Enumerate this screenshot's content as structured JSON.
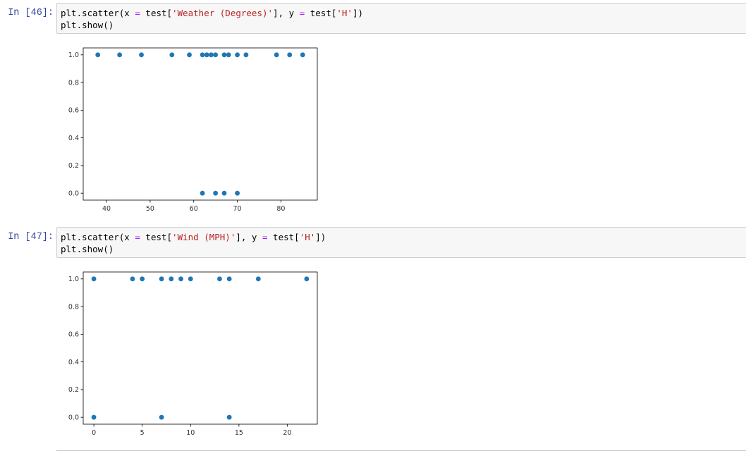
{
  "cells": [
    {
      "prompt": "In [46]:",
      "code": {
        "line1": [
          "plt.scatter(x ",
          "=",
          " test[",
          "'Weather (Degrees)'",
          "], y ",
          "=",
          " test[",
          "'H'",
          "])"
        ],
        "line2": "plt.show()"
      }
    },
    {
      "prompt": "In [47]:",
      "code": {
        "line1": [
          "plt.scatter(x ",
          "=",
          " test[",
          "'Wind (MPH)'",
          "], y ",
          "=",
          " test[",
          "'H'",
          "])"
        ],
        "line2": "plt.show()"
      }
    }
  ],
  "colors": {
    "marker": "#1f77b4",
    "prompt": "#303f9f",
    "string": "#ba2121",
    "operator": "#aa22ff"
  },
  "chart_data": [
    {
      "type": "scatter",
      "xlim": [
        34.65,
        88.35
      ],
      "ylim": [
        -0.05,
        1.05
      ],
      "xticks": [
        40,
        50,
        60,
        70,
        80
      ],
      "yticks": [
        0.0,
        0.2,
        0.4,
        0.6,
        0.8,
        1.0
      ],
      "xticklabels": [
        "40",
        "50",
        "60",
        "70",
        "80"
      ],
      "yticklabels": [
        "0.0",
        "0.2",
        "0.4",
        "0.6",
        "0.8",
        "1.0"
      ],
      "grid": false,
      "points": [
        {
          "x": 38,
          "y": 1
        },
        {
          "x": 43,
          "y": 1
        },
        {
          "x": 48,
          "y": 1
        },
        {
          "x": 55,
          "y": 1
        },
        {
          "x": 59,
          "y": 1
        },
        {
          "x": 62,
          "y": 1
        },
        {
          "x": 63,
          "y": 1
        },
        {
          "x": 64,
          "y": 1
        },
        {
          "x": 65,
          "y": 1
        },
        {
          "x": 67,
          "y": 1
        },
        {
          "x": 68,
          "y": 1
        },
        {
          "x": 70,
          "y": 1
        },
        {
          "x": 72,
          "y": 1
        },
        {
          "x": 79,
          "y": 1
        },
        {
          "x": 82,
          "y": 1
        },
        {
          "x": 85,
          "y": 1
        },
        {
          "x": 62,
          "y": 0
        },
        {
          "x": 65,
          "y": 0
        },
        {
          "x": 67,
          "y": 0
        },
        {
          "x": 70,
          "y": 0
        }
      ]
    },
    {
      "type": "scatter",
      "xlim": [
        -1.1,
        23.1
      ],
      "ylim": [
        -0.05,
        1.05
      ],
      "xticks": [
        0,
        5,
        10,
        15,
        20
      ],
      "yticks": [
        0.0,
        0.2,
        0.4,
        0.6,
        0.8,
        1.0
      ],
      "xticklabels": [
        "0",
        "5",
        "10",
        "15",
        "20"
      ],
      "yticklabels": [
        "0.0",
        "0.2",
        "0.4",
        "0.6",
        "0.8",
        "1.0"
      ],
      "grid": false,
      "points": [
        {
          "x": 0,
          "y": 1
        },
        {
          "x": 4,
          "y": 1
        },
        {
          "x": 5,
          "y": 1
        },
        {
          "x": 7,
          "y": 1
        },
        {
          "x": 8,
          "y": 1
        },
        {
          "x": 9,
          "y": 1
        },
        {
          "x": 10,
          "y": 1
        },
        {
          "x": 13,
          "y": 1
        },
        {
          "x": 14,
          "y": 1
        },
        {
          "x": 17,
          "y": 1
        },
        {
          "x": 22,
          "y": 1
        },
        {
          "x": 0,
          "y": 0
        },
        {
          "x": 7,
          "y": 0
        },
        {
          "x": 14,
          "y": 0
        }
      ]
    }
  ]
}
